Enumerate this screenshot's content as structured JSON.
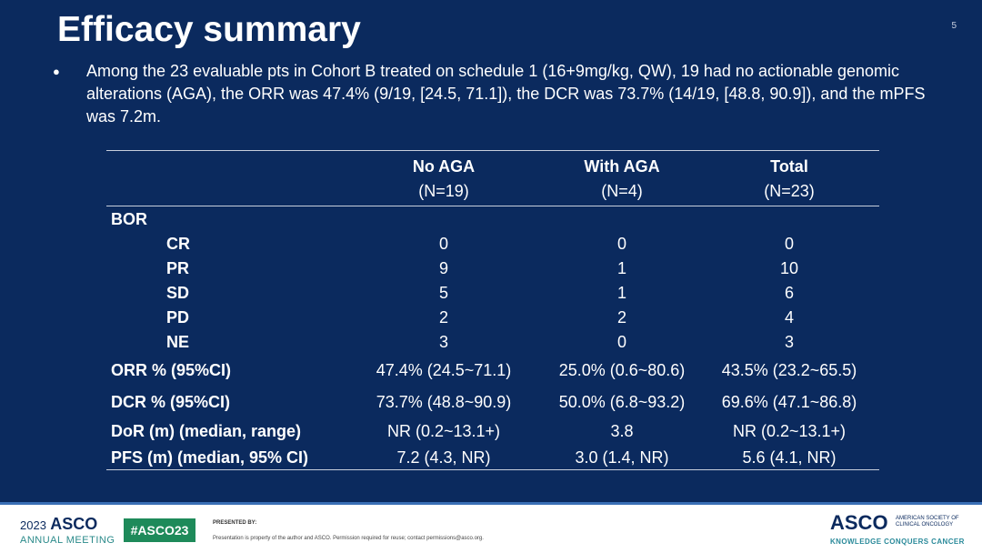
{
  "slide": {
    "title": "Efficacy summary",
    "page_number": "5",
    "bullet": "Among the 23 evaluable pts in Cohort B treated on schedule 1 (16+9mg/kg, QW), 19 had no actionable genomic alterations (AGA), the ORR was 47.4% (9/19, [24.5, 71.1]), the DCR was 73.7% (14/19, [48.8, 90.9]), and the mPFS was 7.2m."
  },
  "table": {
    "columns": [
      {
        "name": "No AGA",
        "n": "(N=19)"
      },
      {
        "name": "With AGA",
        "n": "(N=4)"
      },
      {
        "name": "Total",
        "n": "(N=23)"
      }
    ],
    "section": "BOR",
    "bor_rows": [
      {
        "label": "CR",
        "values": [
          "0",
          "0",
          "0"
        ]
      },
      {
        "label": "PR",
        "values": [
          "9",
          "1",
          "10"
        ]
      },
      {
        "label": "SD",
        "values": [
          "5",
          "1",
          "6"
        ]
      },
      {
        "label": "PD",
        "values": [
          "2",
          "2",
          "4"
        ]
      },
      {
        "label": "NE",
        "values": [
          "3",
          "0",
          "3"
        ]
      }
    ],
    "rows": [
      {
        "label": "ORR % (95%CI)",
        "values": [
          "47.4% (24.5~71.1)",
          "25.0% (0.6~80.6)",
          "43.5% (23.2~65.5)"
        ]
      },
      {
        "label": "DCR % (95%CI)",
        "values": [
          "73.7% (48.8~90.9)",
          "50.0% (6.8~93.2)",
          "69.6% (47.1~86.8)"
        ]
      },
      {
        "label": "DoR (m) (median, range)",
        "values": [
          "NR (0.2~13.1+)",
          "3.8",
          "NR (0.2~13.1+)"
        ]
      },
      {
        "label": "PFS (m) (median, 95% CI)",
        "values": [
          "7.2 (4.3, NR)",
          "3.0 (1.4, NR)",
          "5.6 (4.1, NR)"
        ]
      }
    ]
  },
  "footer": {
    "year": "2023",
    "asco": "ASCO",
    "meeting": "ANNUAL MEETING",
    "hashtag": "#ASCO23",
    "presented_by": "PRESENTED BY:",
    "note": "Presentation is property of the author and ASCO. Permission required for reuse; contact permissions@asco.org.",
    "society": "AMERICAN SOCIETY OF CLINICAL ONCOLOGY",
    "tagline": "KNOWLEDGE CONQUERS CANCER"
  },
  "colors": {
    "background": "#0b2a5e",
    "hashtag_bg": "#1e8a5a"
  }
}
